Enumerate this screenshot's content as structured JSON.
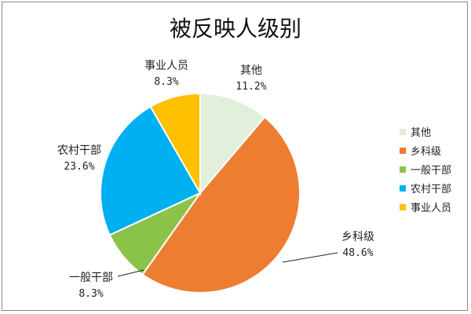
{
  "chart_data": {
    "type": "pie",
    "title": "被反映人级别",
    "categories": [
      "其他",
      "乡科级",
      "一般干部",
      "农村干部",
      "事业人员"
    ],
    "values": [
      11.2,
      48.6,
      8.3,
      23.6,
      8.3
    ],
    "value_labels": [
      "11.2%",
      "48.6%",
      "8.3%",
      "23.6%",
      "8.3%"
    ],
    "colors": [
      "#E2EFDA",
      "#ED7D31",
      "#8BC34A",
      "#00B0F0",
      "#FFC000"
    ],
    "legend": {
      "position": "right"
    }
  }
}
